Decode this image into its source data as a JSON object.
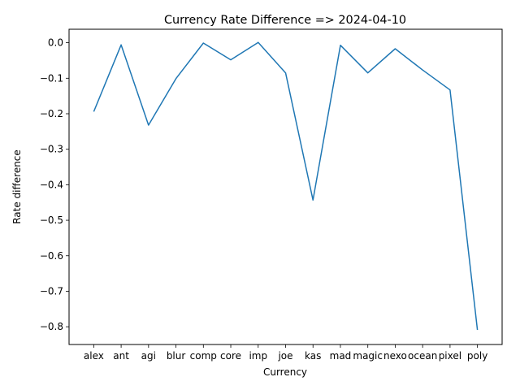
{
  "chart_data": {
    "type": "line",
    "title": "Currency Rate Difference => 2024-04-10",
    "xlabel": "Currency",
    "ylabel": "Rate difference",
    "categories": [
      "alex",
      "ant",
      "agi",
      "blur",
      "comp",
      "core",
      "imp",
      "joe",
      "kas",
      "mad",
      "magic",
      "nexo",
      "ocean",
      "pixel",
      "poly"
    ],
    "series": [
      {
        "values": [
          -0.194,
          -0.006,
          -0.232,
          -0.101,
          -0.001,
          -0.048,
          0.001,
          -0.085,
          -0.443,
          -0.007,
          -0.085,
          -0.017,
          -0.077,
          -0.133,
          -0.809
        ]
      }
    ],
    "yticks": [
      0.0,
      -0.1,
      -0.2,
      -0.3,
      -0.4,
      -0.5,
      -0.6,
      -0.7,
      -0.8
    ],
    "ytick_labels": [
      "0.0",
      "−0.1",
      "−0.2",
      "−0.3",
      "−0.4",
      "−0.5",
      "−0.6",
      "−0.7",
      "−0.8"
    ],
    "ylim": [
      -0.85,
      0.038
    ],
    "grid": false,
    "line_color": "#1f77b4"
  }
}
